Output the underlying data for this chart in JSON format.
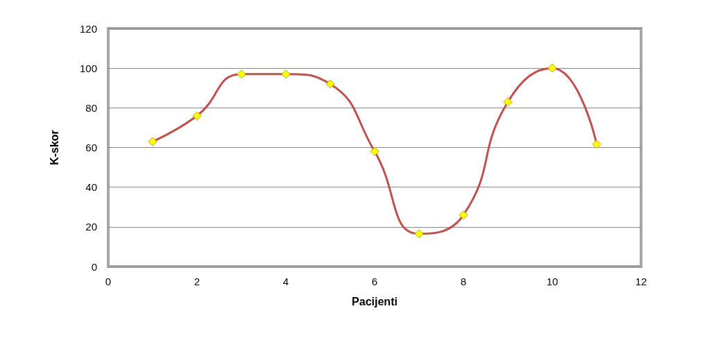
{
  "chart_data": {
    "type": "line",
    "xlabel": "Pacijenti",
    "ylabel": "K-skor",
    "x": [
      1,
      2,
      3,
      4,
      5,
      6,
      7,
      8,
      9,
      10,
      11
    ],
    "series": [
      {
        "color": "#c0504d",
        "values": [
          63,
          76,
          97,
          97,
          92,
          58,
          16.5,
          26,
          83,
          100,
          61.7
        ]
      }
    ],
    "xlim": [
      0,
      12
    ],
    "xticks": [
      0,
      2,
      4,
      6,
      8,
      10,
      12
    ],
    "ylim": [
      0,
      120
    ],
    "yticks": [
      0,
      20,
      40,
      60,
      80,
      100,
      120
    ],
    "grid": "y",
    "marker": "diamond",
    "line_style": "solid"
  }
}
